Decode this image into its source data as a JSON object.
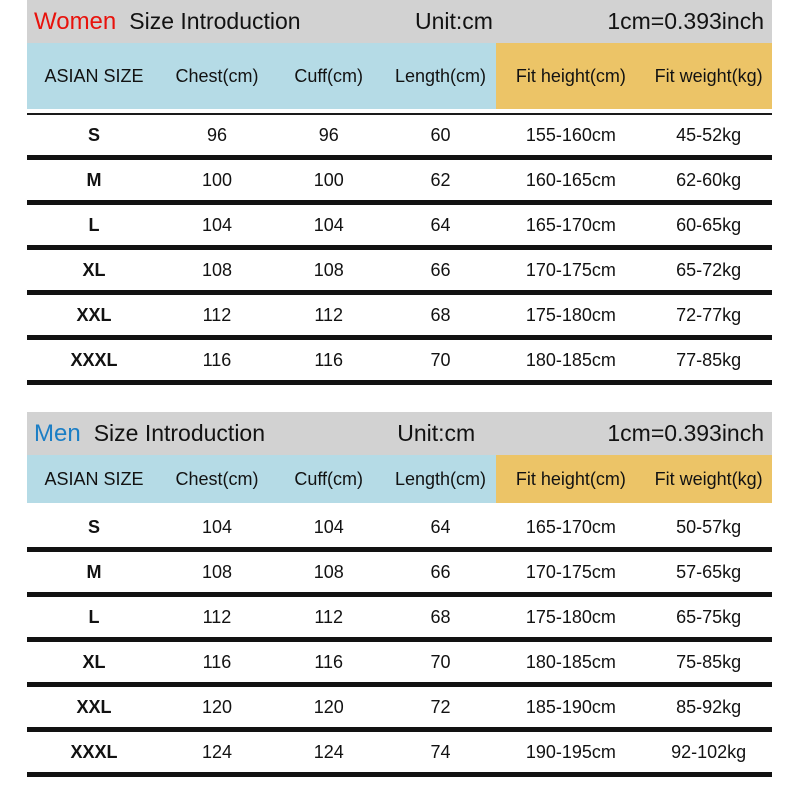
{
  "colors": {
    "title_bar_gray": "#d2d2d2",
    "header_blue": "#b5dbe6",
    "header_orange": "#ecc467",
    "women_red": "#e8120c",
    "men_blue": "#1b7ec5",
    "rule_black": "#121212"
  },
  "columns": {
    "size": "ASIAN SIZE",
    "chest": "Chest(cm)",
    "cuff": "Cuff(cm)",
    "length": "Length(cm)",
    "fit_height": "Fit height(cm)",
    "fit_weight": "Fit weight(kg)"
  },
  "sections": [
    {
      "gender": "Women",
      "title": "Size Introduction",
      "unit": "Unit:cm",
      "conversion": "1cm=0.393inch",
      "rows": [
        [
          "S",
          "96",
          "96",
          "60",
          "155-160cm",
          "45-52kg"
        ],
        [
          "M",
          "100",
          "100",
          "62",
          "160-165cm",
          "62-60kg"
        ],
        [
          "L",
          "104",
          "104",
          "64",
          "165-170cm",
          "60-65kg"
        ],
        [
          "XL",
          "108",
          "108",
          "66",
          "170-175cm",
          "65-72kg"
        ],
        [
          "XXL",
          "112",
          "112",
          "68",
          "175-180cm",
          "72-77kg"
        ],
        [
          "XXXL",
          "116",
          "116",
          "70",
          "180-185cm",
          "77-85kg"
        ]
      ]
    },
    {
      "gender": "Men",
      "title": "Size Introduction",
      "unit": "Unit:cm",
      "conversion": "1cm=0.393inch",
      "rows": [
        [
          "S",
          "104",
          "104",
          "64",
          "165-170cm",
          "50-57kg"
        ],
        [
          "M",
          "108",
          "108",
          "66",
          "170-175cm",
          "57-65kg"
        ],
        [
          "L",
          "112",
          "112",
          "68",
          "175-180cm",
          "65-75kg"
        ],
        [
          "XL",
          "116",
          "116",
          "70",
          "180-185cm",
          "75-85kg"
        ],
        [
          "XXL",
          "120",
          "120",
          "72",
          "185-190cm",
          "85-92kg"
        ],
        [
          "XXXL",
          "124",
          "124",
          "74",
          "190-195cm",
          "92-102kg"
        ]
      ]
    }
  ]
}
